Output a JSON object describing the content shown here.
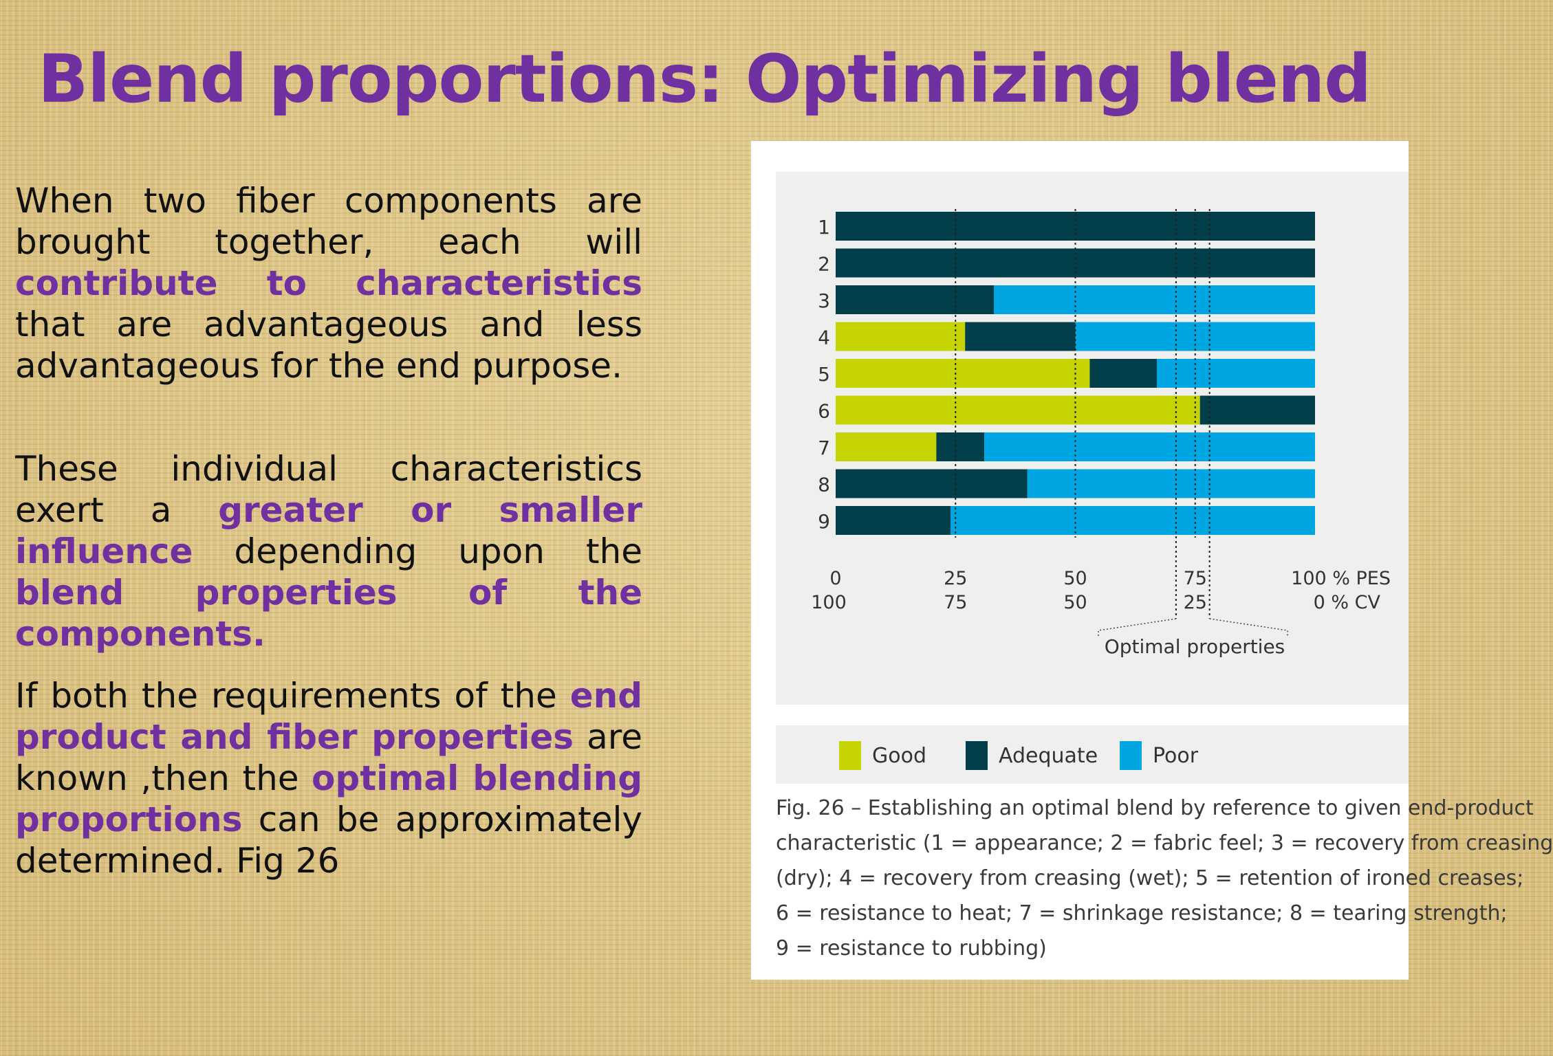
{
  "slide": {
    "title": "Blend proportions: Optimizing blend",
    "paragraphs": {
      "p1": {
        "a": "When two fiber components are brought together, each will ",
        "b": "contribute to characteristics",
        "c": " that are advantageous and less advantageous for the end purpose."
      },
      "p2": {
        "a": " These individual characteristics exert a ",
        "b": "greater or smaller influence",
        "c": " depending upon the ",
        "d": "blend properties of the components."
      },
      "p3": {
        "a": " If both the requirements of the ",
        "b": "end product and fiber properties",
        "c": " are known ,then the ",
        "d": "optimal blending proportions",
        "e": " can be approximately determined. Fig 26"
      }
    }
  },
  "figure": {
    "legend": {
      "good": "Good",
      "adequate": "Adequate",
      "poor": "Poor"
    },
    "caption": [
      "Fig. 26 – Establishing an optimal blend by reference to given end-product",
      "characteristic (1 = appearance; 2 = fabric feel; 3 = recovery from creasing",
      "(dry); 4 = recovery from creasing (wet); 5 = retention of ironed creases;",
      "6 = resistance to heat; 7 = shrinkage resistance; 8 = tearing strength;",
      "9 = resistance to rubbing)"
    ]
  },
  "chart_data": {
    "type": "bar",
    "orientation": "horizontal-stacked",
    "categories": [
      "1",
      "2",
      "3",
      "4",
      "5",
      "6",
      "7",
      "8",
      "9"
    ],
    "x_ticks_pes": [
      "0",
      "25",
      "50",
      "75",
      "100 % PES"
    ],
    "x_ticks_cv": [
      "100",
      "75",
      "50",
      "25",
      "0 % CV"
    ],
    "xlim": [
      0,
      100
    ],
    "series": [
      {
        "name": "Good",
        "color": "#c5d400",
        "values": [
          0,
          0,
          0,
          27,
          53,
          76,
          21,
          0,
          0
        ]
      },
      {
        "name": "Adequate",
        "color": "#033f4b",
        "values": [
          100,
          100,
          33,
          23,
          14,
          24,
          10,
          40,
          24
        ]
      },
      {
        "name": "Poor",
        "color": "#00a6e2",
        "values": [
          0,
          0,
          67,
          50,
          33,
          0,
          69,
          60,
          76
        ]
      }
    ],
    "reference_lines": [
      25,
      50,
      71,
      75,
      78
    ],
    "optimal_range": [
      71,
      78
    ],
    "annotation": "Optimal properties",
    "legend_position": "bottom"
  }
}
